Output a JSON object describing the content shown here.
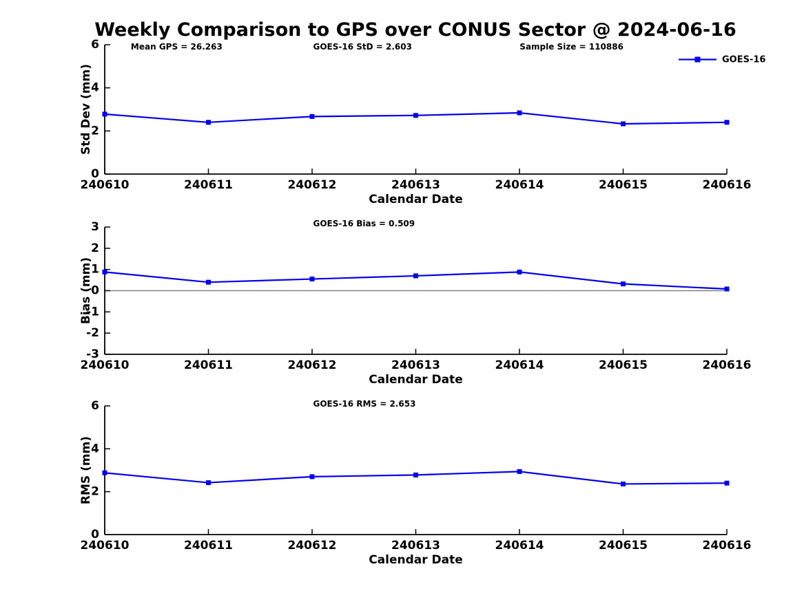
{
  "title": "Weekly Comparison to GPS over CONUS Sector @ 2024-06-16",
  "colors": {
    "series": "#0000EE",
    "zero_line": "#808080",
    "axis": "#000000",
    "text": "#000000",
    "background": "#ffffff"
  },
  "legend": {
    "label": "GOES-16",
    "position": "top-right",
    "marker": "filled-square"
  },
  "chart_data": [
    {
      "type": "line",
      "series_name": "GOES-16",
      "ylabel": "Std Dev (mm)",
      "xlabel": "Calendar Date",
      "categories": [
        "240610",
        "240611",
        "240612",
        "240613",
        "240614",
        "240615",
        "240616"
      ],
      "values": [
        2.78,
        2.4,
        2.67,
        2.72,
        2.84,
        2.33,
        2.4
      ],
      "ylim": [
        0,
        6
      ],
      "yticks": [
        0,
        2,
        4,
        6
      ],
      "grid": false,
      "zero_line": false,
      "annotations": [
        "Mean GPS = 26.263",
        "GOES-16 StD = 2.603",
        "Sample Size = 110886"
      ],
      "show_legend": true
    },
    {
      "type": "line",
      "series_name": "GOES-16",
      "ylabel": "Bias (mm)",
      "xlabel": "Calendar Date",
      "categories": [
        "240610",
        "240611",
        "240612",
        "240613",
        "240614",
        "240615",
        "240616"
      ],
      "values": [
        0.88,
        0.4,
        0.55,
        0.7,
        0.88,
        0.32,
        0.08
      ],
      "ylim": [
        -3,
        3
      ],
      "yticks": [
        -3,
        -2,
        -1,
        0,
        1,
        2,
        3
      ],
      "grid": false,
      "zero_line": true,
      "annotations": [
        "GOES-16 Bias  = 0.509"
      ],
      "show_legend": false
    },
    {
      "type": "line",
      "series_name": "GOES-16",
      "ylabel": "RMS (mm)",
      "xlabel": "Calendar Date",
      "categories": [
        "240610",
        "240611",
        "240612",
        "240613",
        "240614",
        "240615",
        "240616"
      ],
      "values": [
        2.88,
        2.42,
        2.7,
        2.78,
        2.94,
        2.36,
        2.4
      ],
      "ylim": [
        0,
        6
      ],
      "yticks": [
        0,
        2,
        4,
        6
      ],
      "grid": false,
      "zero_line": false,
      "annotations": [
        "GOES-16 RMS = 2.653"
      ],
      "show_legend": false
    }
  ]
}
